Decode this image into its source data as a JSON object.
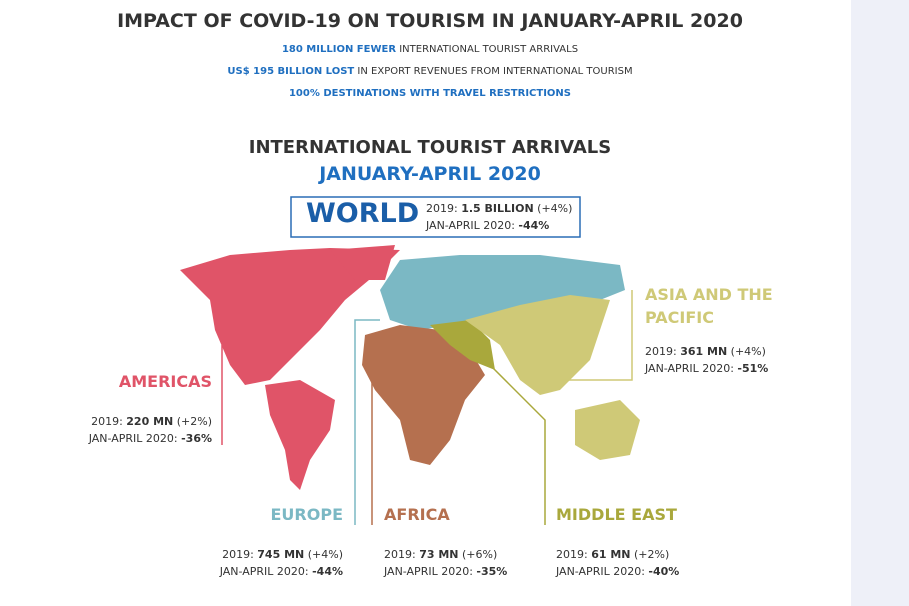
{
  "header": {
    "title": "IMPACT OF COVID-19 ON TOURISM IN JANUARY-APRIL 2020",
    "facts": [
      {
        "highlight": "180 MILLION FEWER",
        "text": "INTERNATIONAL TOURIST ARRIVALS"
      },
      {
        "highlight": "US$ 195 BILLION LOST",
        "text": "IN EXPORT REVENUES FROM INTERNATIONAL TOURISM"
      },
      {
        "highlight": "100% DESTINATIONS WITH TRAVEL RESTRICTIONS"
      }
    ]
  },
  "section": {
    "title": "INTERNATIONAL TOURIST ARRIVALS",
    "subtitle": "JANUARY-APRIL 2020"
  },
  "world": {
    "name": "WORLD",
    "line1": {
      "label": "2019:",
      "value": "1.5 BILLION",
      "change": "(+4%)"
    },
    "line2": {
      "label": "JAN-APRIL 2020:",
      "value": "-44%"
    }
  },
  "regions": [
    {
      "name": "AMERICAS",
      "line1": {
        "label": "2019:",
        "value": "220 MN",
        "change": "(+2%)"
      },
      "line2": {
        "label": "JAN-APRIL 2020:",
        "value": "-36%"
      }
    },
    {
      "name": "EUROPE",
      "line1": {
        "label": "2019:",
        "value": "745 MN",
        "change": "(+4%)"
      },
      "line2": {
        "label": "JAN-APRIL 2020:",
        "value": "-44%"
      }
    },
    {
      "name": "AFRICA",
      "line1": {
        "label": "2019:",
        "value": "73 MN",
        "change": "(+6%)"
      },
      "line2": {
        "label": "JAN-APRIL 2020:",
        "value": "-35%"
      }
    },
    {
      "name": "MIDDLE EAST",
      "line1": {
        "label": "2019:",
        "value": "61 MN",
        "change": "(+2%)"
      },
      "line2": {
        "label": "JAN-APRIL 2020:",
        "value": "-40%"
      }
    },
    {
      "name": "ASIA AND THE PACIFIC",
      "line1": {
        "label": "2019:",
        "value": "361 MN",
        "change": "(+4%)"
      },
      "line2": {
        "label": "JAN-APRIL 2020:",
        "value": "-51%"
      }
    }
  ]
}
